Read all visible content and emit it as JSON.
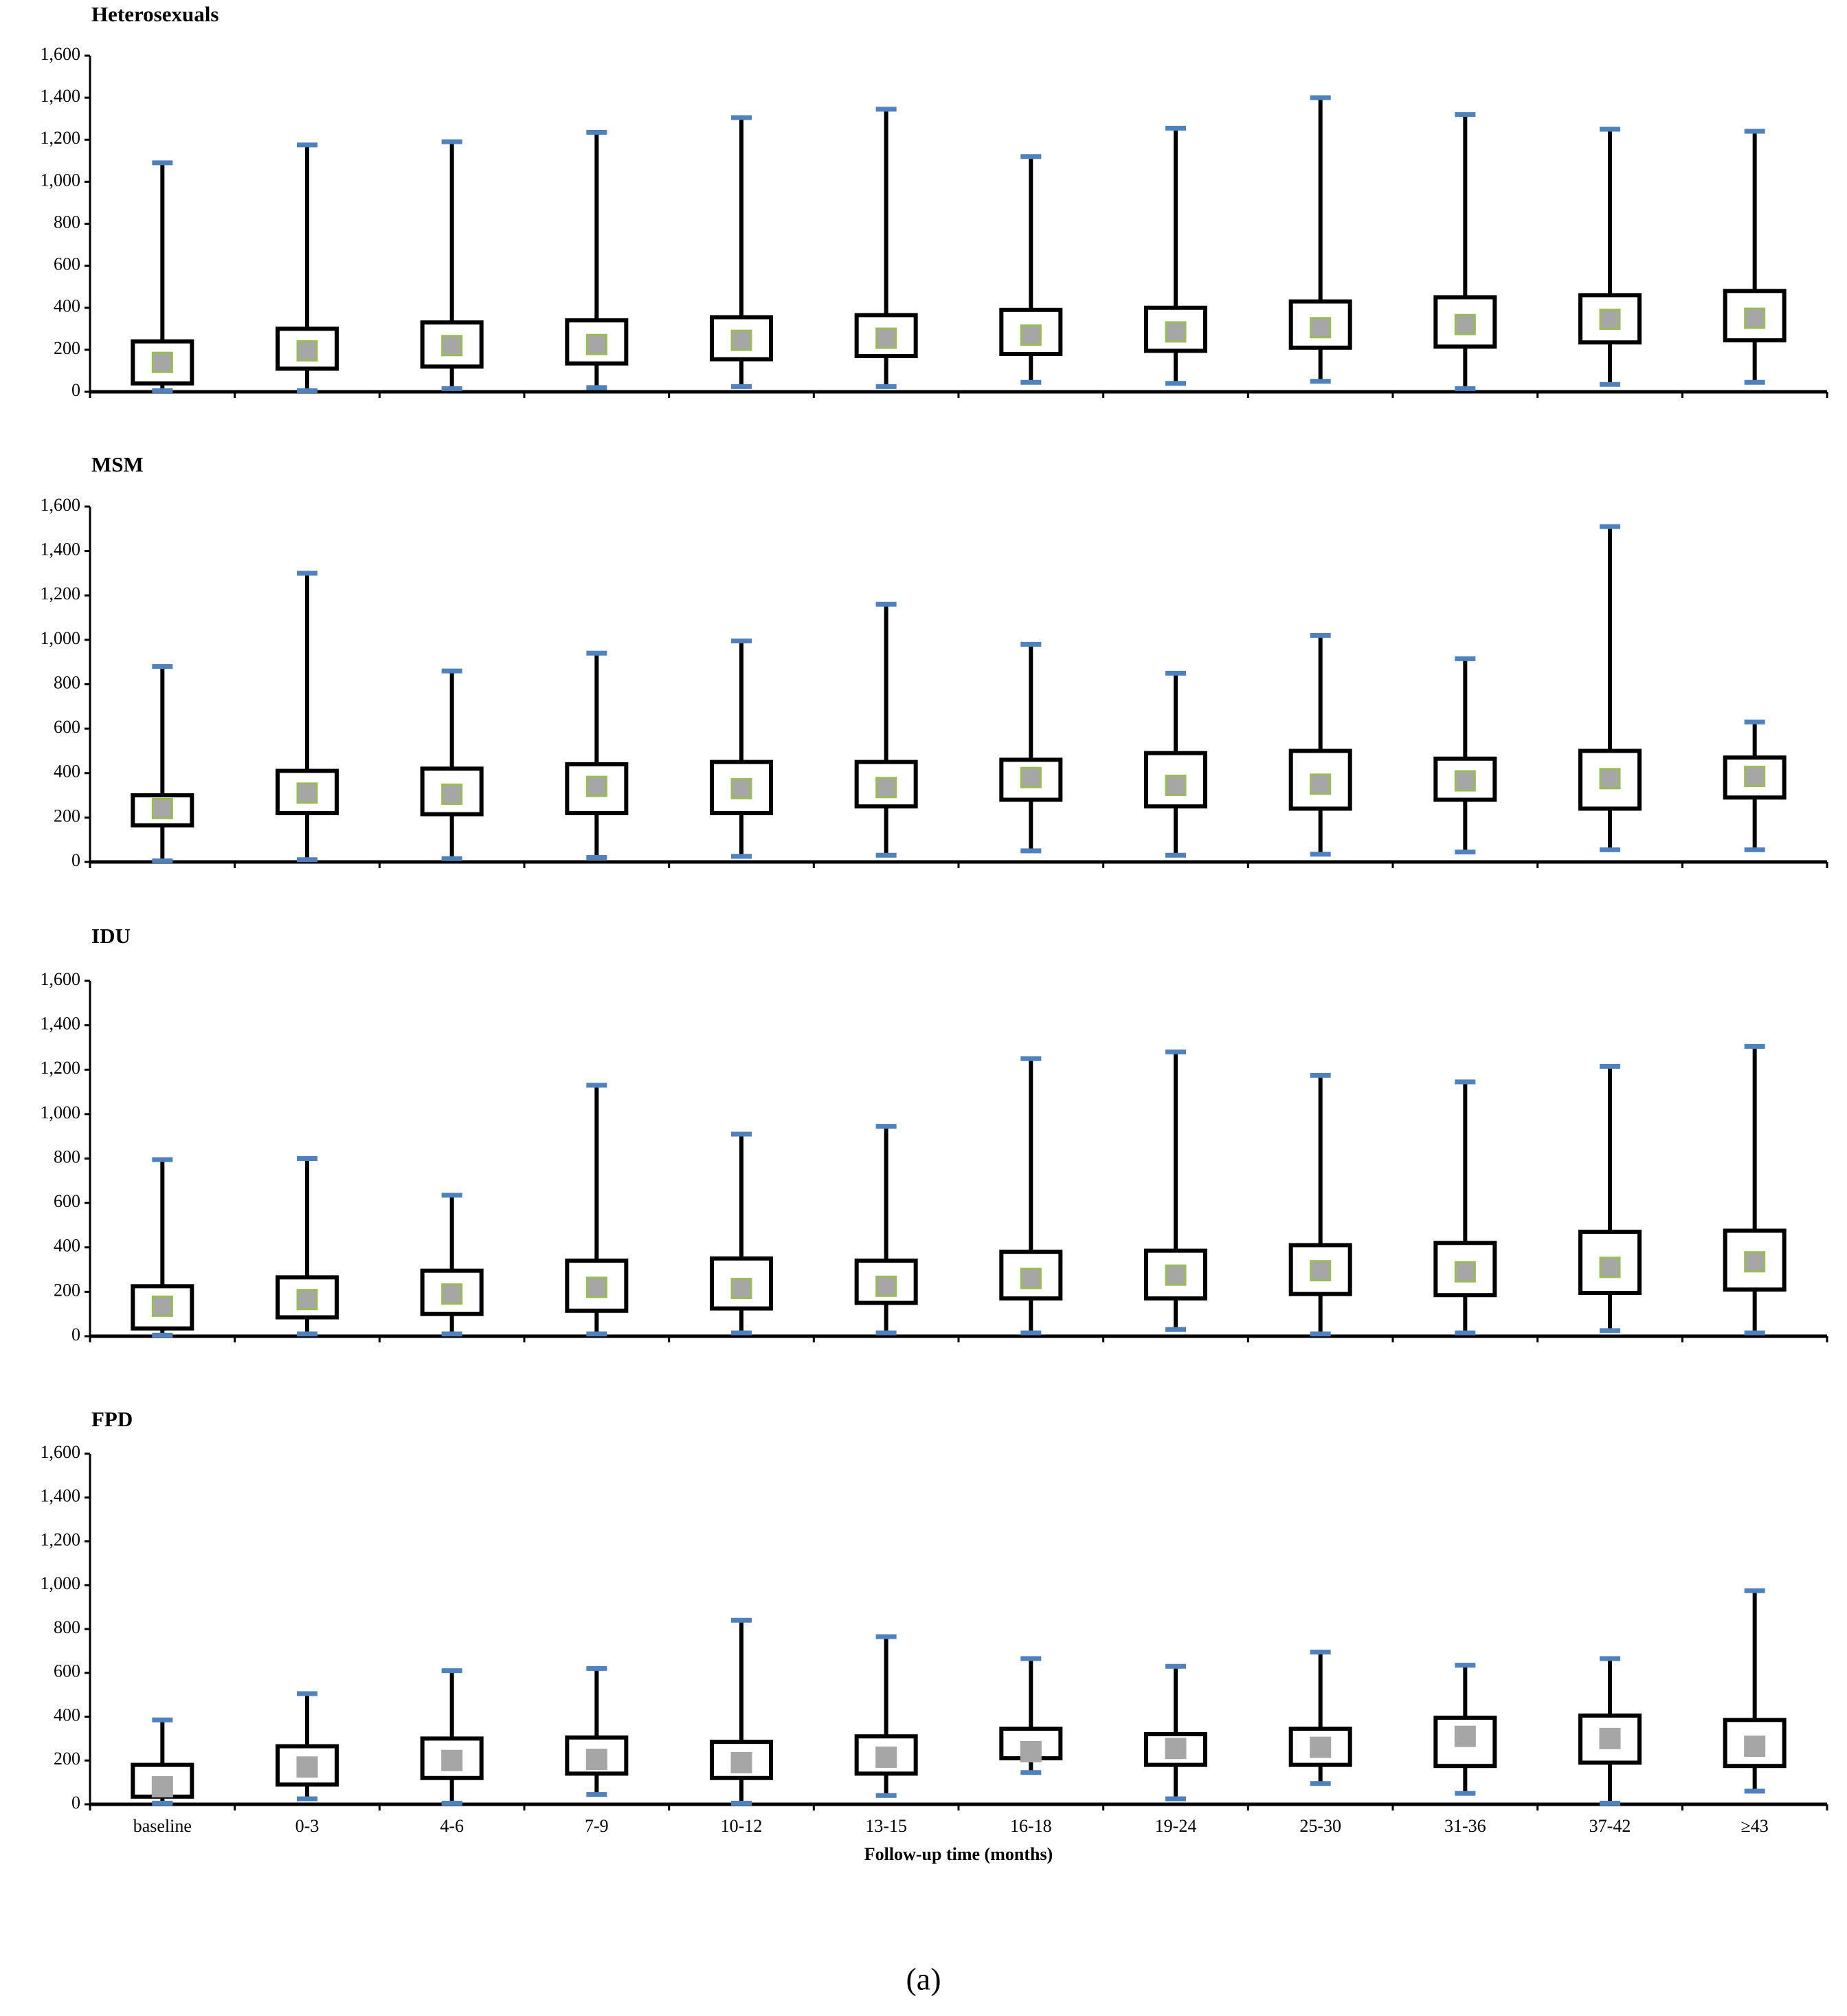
{
  "caption": "(a)",
  "chart_data": [
    {
      "type": "box",
      "title": "Heterosexuals",
      "ylim": [
        0,
        1600
      ],
      "yticks": [
        0,
        200,
        400,
        600,
        800,
        {
          "value": 1000,
          "label": "1,000"
        },
        {
          "value": 1200,
          "label": "1,200"
        },
        {
          "value": 1400,
          "label": "1,400"
        },
        {
          "value": 1600,
          "label": "1,600"
        }
      ],
      "box_color": "#000000",
      "cap_color": "#4f81bd",
      "marker_color": "#a6a6a6",
      "marker_edge": "#9bbb59",
      "min": [
        5,
        5,
        15,
        20,
        25,
        25,
        45,
        40,
        50,
        15,
        35,
        45
      ],
      "q1": [
        40,
        110,
        120,
        135,
        155,
        170,
        180,
        195,
        210,
        215,
        235,
        245
      ],
      "median": [
        140,
        195,
        220,
        225,
        245,
        255,
        270,
        285,
        305,
        320,
        345,
        350
      ],
      "q3": [
        240,
        300,
        330,
        340,
        355,
        365,
        390,
        400,
        430,
        450,
        460,
        480
      ],
      "max": [
        1090,
        1175,
        1190,
        1235,
        1305,
        1345,
        1120,
        1255,
        1400,
        1320,
        1250,
        1240
      ]
    },
    {
      "type": "box",
      "title": "MSM",
      "ylim": [
        0,
        1600
      ],
      "yticks": [
        0,
        200,
        400,
        600,
        800,
        {
          "value": 1000,
          "label": "1,000"
        },
        {
          "value": 1200,
          "label": "1,200"
        },
        {
          "value": 1400,
          "label": "1,400"
        },
        {
          "value": 1600,
          "label": "1,600"
        }
      ],
      "box_color": "#000000",
      "cap_color": "#4f81bd",
      "marker_color": "#a6a6a6",
      "marker_edge": "#9bbb59",
      "min": [
        5,
        10,
        15,
        20,
        25,
        30,
        50,
        30,
        35,
        45,
        55,
        55
      ],
      "q1": [
        165,
        220,
        215,
        220,
        220,
        250,
        280,
        250,
        240,
        280,
        240,
        290
      ],
      "median": [
        240,
        310,
        305,
        340,
        330,
        335,
        380,
        345,
        350,
        365,
        375,
        385
      ],
      "q3": [
        300,
        410,
        420,
        440,
        450,
        450,
        460,
        490,
        500,
        465,
        500,
        470
      ],
      "max": [
        880,
        1300,
        860,
        940,
        995,
        1160,
        980,
        850,
        1020,
        915,
        1510,
        630
      ]
    },
    {
      "type": "box",
      "title": "IDU",
      "ylim": [
        0,
        1600
      ],
      "yticks": [
        0,
        200,
        400,
        600,
        800,
        {
          "value": 1000,
          "label": "1,000"
        },
        {
          "value": 1200,
          "label": "1,200"
        },
        {
          "value": 1400,
          "label": "1,400"
        },
        {
          "value": 1600,
          "label": "1,600"
        }
      ],
      "box_color": "#000000",
      "cap_color": "#4f81bd",
      "marker_color": "#a6a6a6",
      "marker_edge": "#9bbb59",
      "min": [
        5,
        10,
        10,
        10,
        15,
        15,
        15,
        30,
        10,
        15,
        25,
        15
      ],
      "q1": [
        35,
        85,
        100,
        115,
        125,
        150,
        170,
        170,
        190,
        185,
        195,
        210
      ],
      "median": [
        135,
        165,
        190,
        220,
        215,
        225,
        260,
        275,
        295,
        290,
        310,
        335
      ],
      "q3": [
        225,
        265,
        295,
        340,
        350,
        340,
        380,
        385,
        410,
        420,
        470,
        475
      ],
      "max": [
        795,
        800,
        635,
        1130,
        910,
        945,
        1250,
        1280,
        1175,
        1145,
        1215,
        1305
      ]
    },
    {
      "type": "box",
      "title": "FPD",
      "xlabel": "Follow-up time (months)",
      "categories": [
        "baseline",
        "0-3",
        "4-6",
        "7-9",
        "10-12",
        "13-15",
        "16-18",
        "19-24",
        "25-30",
        "31-36",
        "37-42",
        "≥43"
      ],
      "ylim": [
        0,
        1600
      ],
      "yticks": [
        0,
        200,
        400,
        600,
        800,
        {
          "value": 1000,
          "label": "1,000"
        },
        {
          "value": 1200,
          "label": "1,200"
        },
        {
          "value": 1400,
          "label": "1,400"
        },
        {
          "value": 1600,
          "label": "1,600"
        }
      ],
      "box_color": "#000000",
      "cap_color": "#4f81bd",
      "marker_color": "#a6a6a6",
      "marker_edge": "#a6a6a6",
      "min": [
        5,
        25,
        5,
        45,
        5,
        40,
        145,
        25,
        95,
        50,
        5,
        60
      ],
      "q1": [
        35,
        90,
        120,
        140,
        120,
        140,
        210,
        180,
        180,
        175,
        190,
        175
      ],
      "median": [
        80,
        170,
        200,
        205,
        190,
        215,
        240,
        255,
        260,
        310,
        300,
        265
      ],
      "q3": [
        180,
        265,
        300,
        305,
        285,
        310,
        345,
        320,
        345,
        395,
        405,
        385
      ],
      "max": [
        385,
        505,
        610,
        620,
        840,
        765,
        665,
        630,
        695,
        635,
        665,
        975
      ]
    }
  ]
}
